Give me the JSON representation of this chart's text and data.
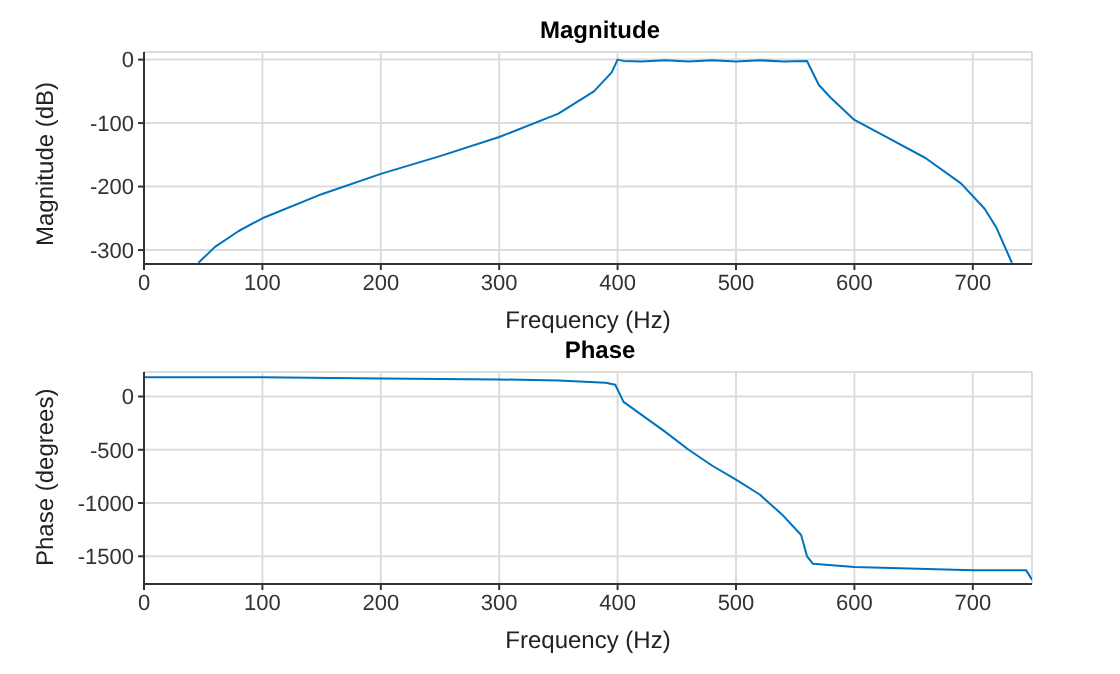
{
  "chart_data": [
    {
      "type": "line",
      "title": "Magnitude",
      "xlabel": "Frequency (Hz)",
      "ylabel": "Magnitude (dB)",
      "xlim": [
        0,
        750
      ],
      "xticks": [
        0,
        100,
        200,
        300,
        400,
        500,
        600,
        700
      ],
      "ylim": [
        -322,
        12
      ],
      "yticks": [
        -300,
        -200,
        -100,
        0
      ],
      "grid": true,
      "line_style": "solid",
      "marker": "none",
      "series": [
        {
          "color": "#0072bd",
          "x": [
            46,
            60,
            80,
            100,
            150,
            200,
            250,
            300,
            350,
            380,
            395,
            400,
            405,
            420,
            440,
            460,
            480,
            500,
            520,
            540,
            560,
            562,
            570,
            580,
            600,
            630,
            660,
            690,
            710,
            720,
            733
          ],
          "values": [
            -320,
            -295,
            -270,
            -250,
            -212,
            -180,
            -152,
            -122,
            -85,
            -50,
            -20,
            0,
            -2,
            -3,
            -1,
            -3,
            -1,
            -3,
            -1,
            -3,
            -2,
            -10,
            -40,
            -60,
            -95,
            -125,
            -155,
            -195,
            -235,
            -265,
            -320
          ]
        }
      ]
    },
    {
      "type": "line",
      "title": "Phase",
      "xlabel": "Frequency (Hz)",
      "ylabel": "Phase (degrees)",
      "xlim": [
        0,
        750
      ],
      "xticks": [
        0,
        100,
        200,
        300,
        400,
        500,
        600,
        700
      ],
      "ylim": [
        -1760,
        230
      ],
      "yticks": [
        -1500,
        -1000,
        -500,
        0
      ],
      "grid": true,
      "line_style": "solid",
      "marker": "none",
      "series": [
        {
          "color": "#0072bd",
          "x": [
            0,
            100,
            200,
            300,
            350,
            390,
            398,
            402,
            405,
            420,
            440,
            460,
            480,
            500,
            520,
            540,
            555,
            560,
            565,
            600,
            700,
            745,
            750
          ],
          "values": [
            180,
            180,
            170,
            160,
            150,
            130,
            110,
            20,
            -50,
            -170,
            -330,
            -500,
            -650,
            -780,
            -920,
            -1120,
            -1300,
            -1500,
            -1570,
            -1600,
            -1630,
            -1630,
            -1720
          ]
        }
      ]
    }
  ]
}
